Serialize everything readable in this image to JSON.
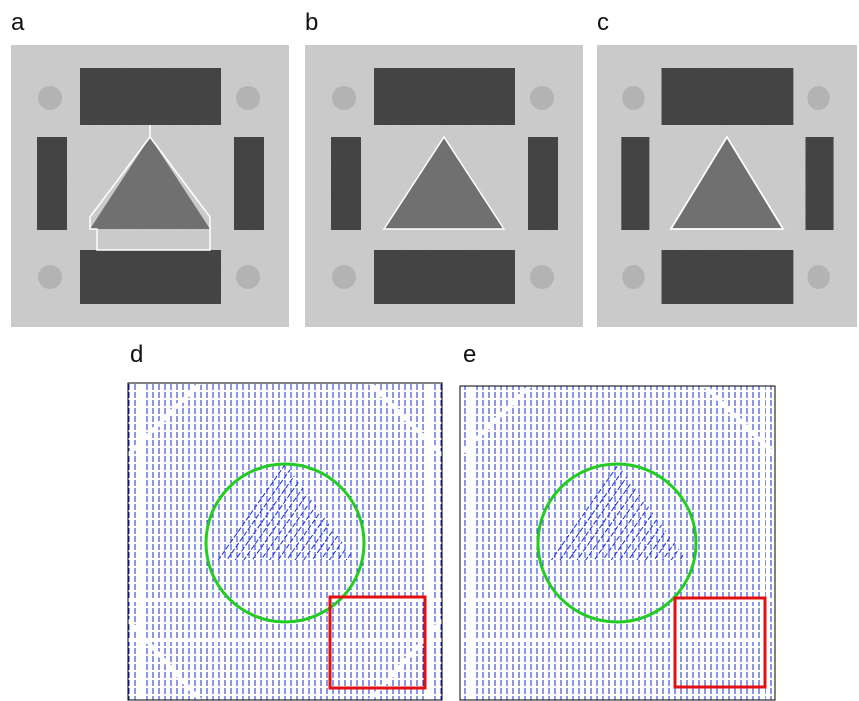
{
  "panels": [
    {
      "label": "a"
    },
    {
      "label": "b"
    },
    {
      "label": "c"
    },
    {
      "label": "d"
    },
    {
      "label": "e"
    }
  ]
}
